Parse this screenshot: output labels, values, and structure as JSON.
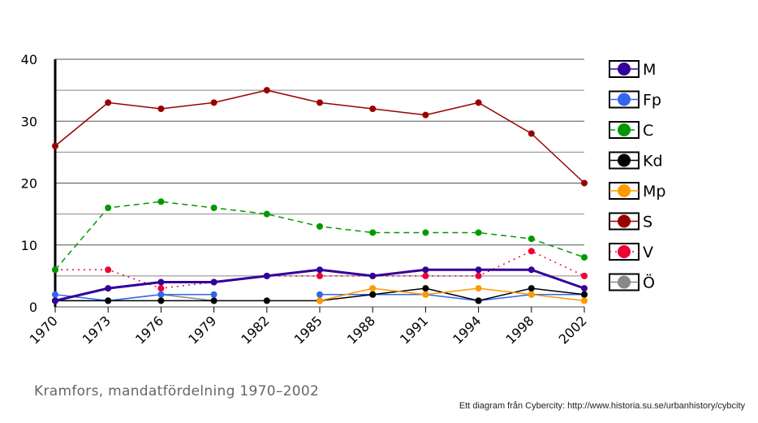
{
  "chart_data": {
    "type": "line",
    "title": "",
    "xlabel": "",
    "ylabel": "",
    "ylim": [
      0,
      40
    ],
    "yticks": [
      "0",
      "10",
      "20",
      "30",
      "40"
    ],
    "categories": [
      "1970",
      "1973",
      "1976",
      "1979",
      "1982",
      "1985",
      "1988",
      "1991",
      "1994",
      "1998",
      "2002"
    ],
    "grid": true,
    "legend_position": "right",
    "series": [
      {
        "name": "M",
        "color": "#330099",
        "style": "solid",
        "width": 3,
        "values": [
          1,
          3,
          4,
          4,
          5,
          6,
          5,
          6,
          6,
          6,
          3
        ]
      },
      {
        "name": "Fp",
        "color": "#3366ee",
        "style": "solid",
        "width": 1.5,
        "values": [
          2,
          1,
          2,
          2,
          null,
          2,
          2,
          2,
          1,
          2,
          2
        ]
      },
      {
        "name": "C",
        "color": "#009900",
        "style": "dashed",
        "width": 1.5,
        "values": [
          6,
          16,
          17,
          16,
          15,
          13,
          12,
          12,
          12,
          11,
          8
        ]
      },
      {
        "name": "Kd",
        "color": "#000000",
        "style": "solid",
        "width": 1.5,
        "values": [
          1,
          1,
          1,
          1,
          1,
          1,
          2,
          3,
          1,
          3,
          2
        ]
      },
      {
        "name": "Mp",
        "color": "#ff9900",
        "style": "solid",
        "width": 1.5,
        "values": [
          null,
          null,
          null,
          null,
          null,
          1,
          3,
          2,
          3,
          2,
          1
        ]
      },
      {
        "name": "S",
        "color": "#990000",
        "style": "solid",
        "width": 1.5,
        "values": [
          26,
          33,
          32,
          33,
          35,
          33,
          32,
          31,
          33,
          28,
          20
        ]
      },
      {
        "name": "V",
        "color": "#ee0033",
        "style": "dotted",
        "width": 1.5,
        "values": [
          6,
          6,
          3,
          4,
          5,
          5,
          5,
          5,
          5,
          9,
          5
        ]
      },
      {
        "name": "Ö",
        "color": "#888888",
        "style": "solid",
        "width": 1.5,
        "values": [
          1,
          1,
          2,
          1,
          null,
          null,
          null,
          null,
          null,
          null,
          null
        ]
      }
    ]
  },
  "caption": "Kramfors, mandatfördelning 1970–2002",
  "credit": "Ett diagram från Cybercity: http://www.historia.su.se/urbanhistory/cybcity"
}
